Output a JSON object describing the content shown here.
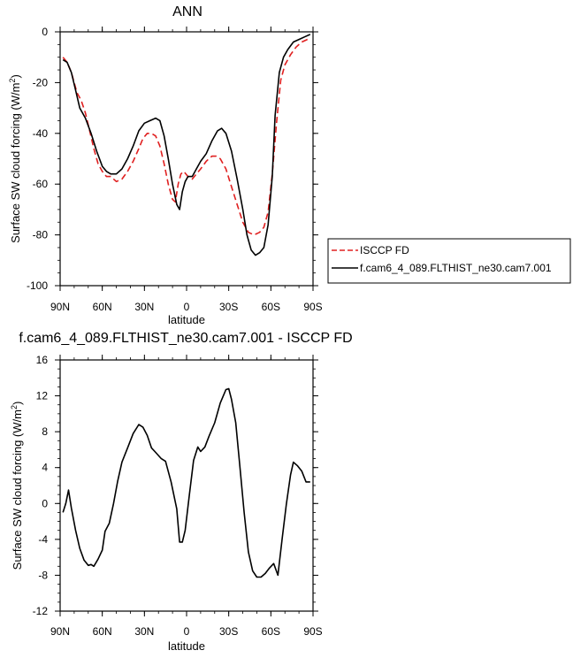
{
  "chart_data": [
    {
      "type": "line",
      "title": "ANN",
      "xlabel": "latitude",
      "ylabel": "Surface SW cloud forcing",
      "ylabel_unit_base": "(W/m",
      "ylabel_unit_exp": "2",
      "ylabel_unit_close": ")",
      "xlim": [
        90,
        -90
      ],
      "ylim": [
        -100,
        0
      ],
      "x_ticks": [
        {
          "value": 90,
          "label": "90N"
        },
        {
          "value": 60,
          "label": "60N"
        },
        {
          "value": 30,
          "label": "30N"
        },
        {
          "value": 0,
          "label": "0"
        },
        {
          "value": -30,
          "label": "30S"
        },
        {
          "value": -60,
          "label": "60S"
        },
        {
          "value": -90,
          "label": "90S"
        }
      ],
      "y_ticks": [
        {
          "value": 0,
          "label": "0"
        },
        {
          "value": -20,
          "label": "-20"
        },
        {
          "value": -40,
          "label": "-40"
        },
        {
          "value": -60,
          "label": "-60"
        },
        {
          "value": -80,
          "label": "-80"
        },
        {
          "value": -100,
          "label": "-100"
        }
      ],
      "legend_position": "right",
      "series": [
        {
          "name": "ISCCP FD",
          "color": "#e02020",
          "dash": "dashed",
          "points": [
            [
              88,
              -10
            ],
            [
              85,
              -12
            ],
            [
              82,
              -16
            ],
            [
              78,
              -24
            ],
            [
              75,
              -27
            ],
            [
              72,
              -32
            ],
            [
              69,
              -39
            ],
            [
              66,
              -46
            ],
            [
              63,
              -52
            ],
            [
              60,
              -55
            ],
            [
              57,
              -57
            ],
            [
              54,
              -57
            ],
            [
              50,
              -59
            ],
            [
              46,
              -58
            ],
            [
              42,
              -55
            ],
            [
              38,
              -51
            ],
            [
              34,
              -46
            ],
            [
              31,
              -42
            ],
            [
              28,
              -40
            ],
            [
              25,
              -40
            ],
            [
              22,
              -41
            ],
            [
              19,
              -45
            ],
            [
              16,
              -52
            ],
            [
              13,
              -60
            ],
            [
              10,
              -66
            ],
            [
              8,
              -67
            ],
            [
              6,
              -60
            ],
            [
              4,
              -56
            ],
            [
              2,
              -55
            ],
            [
              -1,
              -57
            ],
            [
              -4,
              -58
            ],
            [
              -7,
              -56
            ],
            [
              -10,
              -54
            ],
            [
              -14,
              -51
            ],
            [
              -18,
              -49
            ],
            [
              -21,
              -49
            ],
            [
              -24,
              -50
            ],
            [
              -28,
              -54
            ],
            [
              -32,
              -61
            ],
            [
              -36,
              -68
            ],
            [
              -40,
              -75
            ],
            [
              -44,
              -79
            ],
            [
              -48,
              -80
            ],
            [
              -52,
              -79
            ],
            [
              -55,
              -77
            ],
            [
              -58,
              -71
            ],
            [
              -61,
              -56
            ],
            [
              -64,
              -36
            ],
            [
              -67,
              -19
            ],
            [
              -70,
              -13
            ],
            [
              -74,
              -9
            ],
            [
              -78,
              -6
            ],
            [
              -82,
              -4
            ],
            [
              -86,
              -3
            ],
            [
              -88,
              -3
            ]
          ]
        },
        {
          "name": "f.cam6_4_089.FLTHIST_ne30.cam7.001",
          "color": "#000000",
          "dash": "solid",
          "points": [
            [
              88,
              -11
            ],
            [
              85,
              -12
            ],
            [
              82,
              -16
            ],
            [
              79,
              -23
            ],
            [
              76,
              -30
            ],
            [
              72,
              -34
            ],
            [
              68,
              -40
            ],
            [
              64,
              -47
            ],
            [
              60,
              -53
            ],
            [
              57,
              -55
            ],
            [
              54,
              -56
            ],
            [
              50,
              -56
            ],
            [
              46,
              -54
            ],
            [
              42,
              -50
            ],
            [
              38,
              -45
            ],
            [
              34,
              -39
            ],
            [
              30,
              -36
            ],
            [
              26,
              -35
            ],
            [
              22,
              -34
            ],
            [
              19,
              -35
            ],
            [
              16,
              -41
            ],
            [
              13,
              -50
            ],
            [
              10,
              -60
            ],
            [
              7,
              -68
            ],
            [
              5,
              -70
            ],
            [
              3,
              -63
            ],
            [
              1,
              -59
            ],
            [
              -1,
              -57
            ],
            [
              -4,
              -57
            ],
            [
              -7,
              -54
            ],
            [
              -10,
              -51
            ],
            [
              -14,
              -48
            ],
            [
              -18,
              -43
            ],
            [
              -22,
              -39
            ],
            [
              -25,
              -38
            ],
            [
              -28,
              -40
            ],
            [
              -32,
              -47
            ],
            [
              -36,
              -58
            ],
            [
              -40,
              -70
            ],
            [
              -43,
              -80
            ],
            [
              -46,
              -86
            ],
            [
              -49,
              -88
            ],
            [
              -52,
              -87
            ],
            [
              -55,
              -85
            ],
            [
              -58,
              -76
            ],
            [
              -61,
              -57
            ],
            [
              -63,
              -33
            ],
            [
              -66,
              -16
            ],
            [
              -69,
              -10
            ],
            [
              -72,
              -7
            ],
            [
              -76,
              -4
            ],
            [
              -80,
              -3
            ],
            [
              -84,
              -2
            ],
            [
              -88,
              -1
            ]
          ]
        }
      ]
    },
    {
      "type": "line",
      "title": "f.cam6_4_089.FLTHIST_ne30.cam7.001 - ISCCP FD",
      "xlabel": "latitude",
      "ylabel": "Surface SW cloud forcing",
      "ylabel_unit_base": "(W/m",
      "ylabel_unit_exp": "2",
      "ylabel_unit_close": ")",
      "xlim": [
        90,
        -90
      ],
      "ylim": [
        -12,
        16
      ],
      "x_ticks": [
        {
          "value": 90,
          "label": "90N"
        },
        {
          "value": 60,
          "label": "60N"
        },
        {
          "value": 30,
          "label": "30N"
        },
        {
          "value": 0,
          "label": "0"
        },
        {
          "value": -30,
          "label": "30S"
        },
        {
          "value": -60,
          "label": "60S"
        },
        {
          "value": -90,
          "label": "90S"
        }
      ],
      "y_ticks": [
        {
          "value": 16,
          "label": "16"
        },
        {
          "value": 12,
          "label": "12"
        },
        {
          "value": 8,
          "label": "8"
        },
        {
          "value": 4,
          "label": "4"
        },
        {
          "value": 0,
          "label": "0"
        },
        {
          "value": -4,
          "label": "-4"
        },
        {
          "value": -8,
          "label": "-8"
        },
        {
          "value": -12,
          "label": "-12"
        }
      ],
      "series": [
        {
          "color": "#000000",
          "dash": "solid",
          "points": [
            [
              88,
              -1
            ],
            [
              86,
              0
            ],
            [
              84,
              1.5
            ],
            [
              82,
              -0.5
            ],
            [
              79,
              -3
            ],
            [
              76,
              -5
            ],
            [
              73,
              -6.3
            ],
            [
              70,
              -6.9
            ],
            [
              68,
              -6.8
            ],
            [
              66,
              -7
            ],
            [
              63,
              -6.2
            ],
            [
              60,
              -5.2
            ],
            [
              58,
              -3.1
            ],
            [
              55,
              -2.2
            ],
            [
              52,
              0
            ],
            [
              49,
              2.5
            ],
            [
              46,
              4.6
            ],
            [
              42,
              6.2
            ],
            [
              38,
              7.8
            ],
            [
              34,
              8.8
            ],
            [
              31,
              8.5
            ],
            [
              28,
              7.6
            ],
            [
              25,
              6.2
            ],
            [
              22,
              5.7
            ],
            [
              18,
              5
            ],
            [
              15,
              4.7
            ],
            [
              11,
              2.4
            ],
            [
              7,
              -0.6
            ],
            [
              5,
              -4.3
            ],
            [
              3,
              -4.3
            ],
            [
              1,
              -3
            ],
            [
              -2,
              1
            ],
            [
              -5,
              4.8
            ],
            [
              -8,
              6.3
            ],
            [
              -10,
              5.8
            ],
            [
              -13,
              6.3
            ],
            [
              -16,
              7.5
            ],
            [
              -20,
              9
            ],
            [
              -24,
              11.2
            ],
            [
              -28,
              12.7
            ],
            [
              -30,
              12.8
            ],
            [
              -32,
              11.6
            ],
            [
              -35,
              9
            ],
            [
              -38,
              4
            ],
            [
              -41,
              -1
            ],
            [
              -44,
              -5.4
            ],
            [
              -47,
              -7.5
            ],
            [
              -50,
              -8.2
            ],
            [
              -53,
              -8.2
            ],
            [
              -56,
              -7.8
            ],
            [
              -59,
              -7.2
            ],
            [
              -62,
              -6.7
            ],
            [
              -65,
              -8
            ],
            [
              -68,
              -4
            ],
            [
              -71,
              -0.1
            ],
            [
              -74,
              3.2
            ],
            [
              -76,
              4.6
            ],
            [
              -79,
              4.2
            ],
            [
              -82,
              3.6
            ],
            [
              -85,
              2.4
            ],
            [
              -88,
              2.4
            ]
          ]
        }
      ]
    }
  ]
}
